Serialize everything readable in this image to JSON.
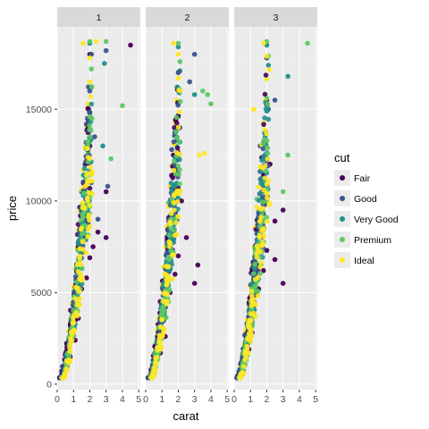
{
  "chart_data": {
    "type": "scatter",
    "xlabel": "carat",
    "ylabel": "price",
    "xlim": [
      0,
      5.1
    ],
    "ylim": [
      -300,
      19500
    ],
    "x_ticks": [
      0,
      1,
      2,
      3,
      4,
      5
    ],
    "y_ticks": [
      0,
      5000,
      10000,
      15000
    ],
    "y_tick_labels": [
      "0",
      "5000",
      "10000",
      "15000"
    ],
    "grid": true,
    "facets": [
      "1",
      "2",
      "3"
    ],
    "legend": {
      "title": "cut",
      "position": "right",
      "entries": [
        "Fair",
        "Good",
        "Very Good",
        "Premium",
        "Ideal"
      ],
      "colors": [
        "#440154",
        "#3b528b",
        "#21908c",
        "#5dc863",
        "#fde725"
      ]
    },
    "series": [
      {
        "name": "Fair",
        "facet_points": [
          [
            [
              0.35,
              650
            ],
            [
              0.5,
              1100
            ],
            [
              0.7,
              1800
            ],
            [
              0.9,
              2600
            ],
            [
              1.0,
              3400
            ],
            [
              1.2,
              4300
            ],
            [
              1.5,
              5200
            ],
            [
              1.8,
              5800
            ],
            [
              2.0,
              6900
            ],
            [
              2.2,
              7500
            ],
            [
              2.5,
              8300
            ],
            [
              3.0,
              8000
            ],
            [
              3.0,
              10500
            ],
            [
              2.0,
              13000
            ],
            [
              1.6,
              11000
            ],
            [
              2.0,
              18000
            ],
            [
              4.5,
              18500
            ],
            [
              1.1,
              2400
            ],
            [
              1.3,
              3600
            ],
            [
              0.8,
              1500
            ]
          ],
          [
            [
              0.35,
              600
            ],
            [
              0.6,
              1300
            ],
            [
              0.8,
              2000
            ],
            [
              1.0,
              3000
            ],
            [
              1.2,
              4200
            ],
            [
              1.5,
              5000
            ],
            [
              1.8,
              6000
            ],
            [
              2.0,
              7000
            ],
            [
              2.5,
              8000
            ],
            [
              3.0,
              5500
            ],
            [
              3.2,
              6500
            ],
            [
              2.2,
              10000
            ],
            [
              2.0,
              14000
            ],
            [
              1.7,
              12500
            ],
            [
              1.2,
              2600
            ],
            [
              0.9,
              1700
            ]
          ],
          [
            [
              0.4,
              700
            ],
            [
              0.6,
              1400
            ],
            [
              0.8,
              2100
            ],
            [
              1.0,
              3200
            ],
            [
              1.2,
              3900
            ],
            [
              1.5,
              5200
            ],
            [
              1.8,
              6200
            ],
            [
              2.0,
              7300
            ],
            [
              2.5,
              8900
            ],
            [
              3.0,
              9500
            ],
            [
              2.5,
              6800
            ],
            [
              3.0,
              5500
            ],
            [
              2.2,
              12000
            ],
            [
              2.0,
              15500
            ],
            [
              1.1,
              2800
            ],
            [
              0.9,
              1900
            ]
          ]
        ]
      },
      {
        "name": "Good",
        "facet_points": [
          [
            [
              0.3,
              500
            ],
            [
              0.5,
              1200
            ],
            [
              0.7,
              2000
            ],
            [
              0.9,
              3100
            ],
            [
              1.1,
              4300
            ],
            [
              1.3,
              5600
            ],
            [
              1.6,
              7200
            ],
            [
              1.9,
              8800
            ],
            [
              2.1,
              11000
            ],
            [
              2.3,
              13500
            ],
            [
              2.0,
              16000
            ],
            [
              2.1,
              18000
            ],
            [
              1.5,
              10500
            ],
            [
              1.7,
              12000
            ],
            [
              2.5,
              9000
            ],
            [
              3.0,
              18200
            ],
            [
              3.1,
              10800
            ],
            [
              1.0,
              3900
            ],
            [
              1.2,
              4800
            ]
          ],
          [
            [
              0.3,
              520
            ],
            [
              0.5,
              1150
            ],
            [
              0.7,
              2100
            ],
            [
              0.9,
              3000
            ],
            [
              1.1,
              4500
            ],
            [
              1.3,
              5900
            ],
            [
              1.5,
              7500
            ],
            [
              1.8,
              9000
            ],
            [
              2.0,
              11500
            ],
            [
              2.1,
              14000
            ],
            [
              2.0,
              17000
            ],
            [
              1.6,
              12800
            ],
            [
              2.7,
              16500
            ],
            [
              3.0,
              18000
            ],
            [
              1.0,
              3600
            ],
            [
              1.4,
              6300
            ]
          ],
          [
            [
              0.3,
              480
            ],
            [
              0.5,
              1250
            ],
            [
              0.7,
              2200
            ],
            [
              0.9,
              3200
            ],
            [
              1.1,
              4600
            ],
            [
              1.3,
              6000
            ],
            [
              1.5,
              7600
            ],
            [
              1.8,
              9300
            ],
            [
              2.0,
              12200
            ],
            [
              2.1,
              15000
            ],
            [
              2.0,
              17800
            ],
            [
              1.6,
              13000
            ],
            [
              2.5,
              15500
            ],
            [
              1.0,
              3800
            ],
            [
              1.4,
              6500
            ]
          ]
        ]
      },
      {
        "name": "Very Good",
        "facet_points": [
          [
            [
              0.3,
              480
            ],
            [
              0.5,
              1100
            ],
            [
              0.7,
              2300
            ],
            [
              0.9,
              3600
            ],
            [
              1.1,
              4900
            ],
            [
              1.3,
              6300
            ],
            [
              1.5,
              7900
            ],
            [
              1.7,
              9600
            ],
            [
              1.9,
              11500
            ],
            [
              2.0,
              13800
            ],
            [
              2.1,
              16200
            ],
            [
              2.0,
              18600
            ],
            [
              1.4,
              8500
            ],
            [
              1.6,
              10300
            ],
            [
              2.9,
              17500
            ],
            [
              0.8,
              2700
            ],
            [
              1.2,
              5500
            ],
            [
              2.8,
              13000
            ]
          ],
          [
            [
              0.3,
              470
            ],
            [
              0.5,
              1150
            ],
            [
              0.7,
              2400
            ],
            [
              0.9,
              3500
            ],
            [
              1.1,
              5100
            ],
            [
              1.3,
              6600
            ],
            [
              1.5,
              8200
            ],
            [
              1.7,
              9900
            ],
            [
              1.9,
              12300
            ],
            [
              2.0,
              14600
            ],
            [
              2.1,
              17100
            ],
            [
              2.0,
              18400
            ],
            [
              1.5,
              9200
            ],
            [
              3.0,
              15800
            ],
            [
              0.8,
              2800
            ],
            [
              1.2,
              5700
            ]
          ],
          [
            [
              0.3,
              490
            ],
            [
              0.5,
              1180
            ],
            [
              0.7,
              2350
            ],
            [
              0.9,
              3700
            ],
            [
              1.1,
              5200
            ],
            [
              1.3,
              6700
            ],
            [
              1.5,
              8300
            ],
            [
              1.7,
              10100
            ],
            [
              1.9,
              12500
            ],
            [
              2.0,
              14900
            ],
            [
              2.1,
              17400
            ],
            [
              2.0,
              18500
            ],
            [
              1.5,
              9400
            ],
            [
              3.3,
              16800
            ],
            [
              0.8,
              2900
            ],
            [
              1.2,
              5800
            ]
          ]
        ]
      },
      {
        "name": "Premium",
        "facet_points": [
          [
            [
              0.3,
              520
            ],
            [
              0.5,
              1300
            ],
            [
              0.7,
              2500
            ],
            [
              0.9,
              3800
            ],
            [
              1.1,
              5200
            ],
            [
              1.3,
              6800
            ],
            [
              1.5,
              8600
            ],
            [
              1.7,
              10400
            ],
            [
              1.9,
              12600
            ],
            [
              2.0,
              14800
            ],
            [
              2.1,
              17200
            ],
            [
              2.0,
              18700
            ],
            [
              4.0,
              15200
            ],
            [
              3.3,
              12300
            ],
            [
              3.0,
              18700
            ],
            [
              1.4,
              9600
            ],
            [
              1.6,
              11400
            ],
            [
              0.8,
              3000
            ],
            [
              1.2,
              6100
            ]
          ],
          [
            [
              0.3,
              510
            ],
            [
              0.5,
              1280
            ],
            [
              0.7,
              2600
            ],
            [
              0.9,
              3900
            ],
            [
              1.1,
              5400
            ],
            [
              1.3,
              7000
            ],
            [
              1.5,
              8900
            ],
            [
              1.7,
              10700
            ],
            [
              1.9,
              13000
            ],
            [
              2.0,
              15300
            ],
            [
              2.1,
              17600
            ],
            [
              2.0,
              18600
            ],
            [
              3.5,
              16000
            ],
            [
              4.0,
              15300
            ],
            [
              3.8,
              15800
            ],
            [
              1.4,
              9900
            ],
            [
              0.8,
              3100
            ],
            [
              1.2,
              6300
            ]
          ],
          [
            [
              0.3,
              530
            ],
            [
              0.5,
              1320
            ],
            [
              0.7,
              2650
            ],
            [
              0.9,
              4000
            ],
            [
              1.1,
              5500
            ],
            [
              1.3,
              7100
            ],
            [
              1.5,
              9000
            ],
            [
              1.7,
              10900
            ],
            [
              1.9,
              13200
            ],
            [
              2.0,
              15600
            ],
            [
              2.1,
              17900
            ],
            [
              2.0,
              18700
            ],
            [
              3.0,
              10500
            ],
            [
              4.5,
              18600
            ],
            [
              3.3,
              12500
            ],
            [
              1.4,
              10100
            ],
            [
              0.8,
              3200
            ],
            [
              1.2,
              6400
            ]
          ]
        ]
      },
      {
        "name": "Ideal",
        "facet_points": [
          [
            [
              0.3,
              600
            ],
            [
              0.4,
              900
            ],
            [
              0.5,
              1600
            ],
            [
              0.6,
              2100
            ],
            [
              0.7,
              2900
            ],
            [
              0.8,
              3500
            ],
            [
              0.9,
              4400
            ],
            [
              1.0,
              5300
            ],
            [
              1.1,
              6300
            ],
            [
              1.2,
              7400
            ],
            [
              1.3,
              8400
            ],
            [
              1.4,
              9500
            ],
            [
              1.5,
              10600
            ],
            [
              1.6,
              11700
            ],
            [
              1.7,
              12900
            ],
            [
              1.8,
              14100
            ],
            [
              1.9,
              15300
            ],
            [
              2.0,
              16500
            ],
            [
              2.0,
              17800
            ],
            [
              1.6,
              18600
            ],
            [
              2.4,
              18700
            ],
            [
              2.1,
              14500
            ]
          ],
          [
            [
              0.3,
              620
            ],
            [
              0.4,
              950
            ],
            [
              0.5,
              1650
            ],
            [
              0.6,
              2200
            ],
            [
              0.7,
              2950
            ],
            [
              0.8,
              3600
            ],
            [
              0.9,
              4500
            ],
            [
              1.0,
              5400
            ],
            [
              1.1,
              6400
            ],
            [
              1.2,
              7500
            ],
            [
              1.3,
              8600
            ],
            [
              1.4,
              9700
            ],
            [
              1.5,
              10800
            ],
            [
              1.6,
              11900
            ],
            [
              1.7,
              13100
            ],
            [
              1.8,
              14300
            ],
            [
              1.9,
              15500
            ],
            [
              2.0,
              16700
            ],
            [
              2.0,
              18000
            ],
            [
              1.7,
              18600
            ],
            [
              3.3,
              12500
            ],
            [
              3.6,
              12600
            ]
          ],
          [
            [
              0.3,
              610
            ],
            [
              0.4,
              930
            ],
            [
              0.5,
              1620
            ],
            [
              0.6,
              2150
            ],
            [
              0.7,
              2900
            ],
            [
              0.8,
              3550
            ],
            [
              0.9,
              4450
            ],
            [
              1.0,
              5350
            ],
            [
              1.1,
              6350
            ],
            [
              1.2,
              7450
            ],
            [
              1.3,
              8550
            ],
            [
              1.4,
              9650
            ],
            [
              1.5,
              10750
            ],
            [
              1.6,
              11850
            ],
            [
              1.7,
              13050
            ],
            [
              1.8,
              14250
            ],
            [
              1.9,
              15450
            ],
            [
              2.0,
              16650
            ],
            [
              2.0,
              17900
            ],
            [
              1.8,
              18600
            ],
            [
              1.2,
              15000
            ]
          ]
        ]
      }
    ]
  }
}
